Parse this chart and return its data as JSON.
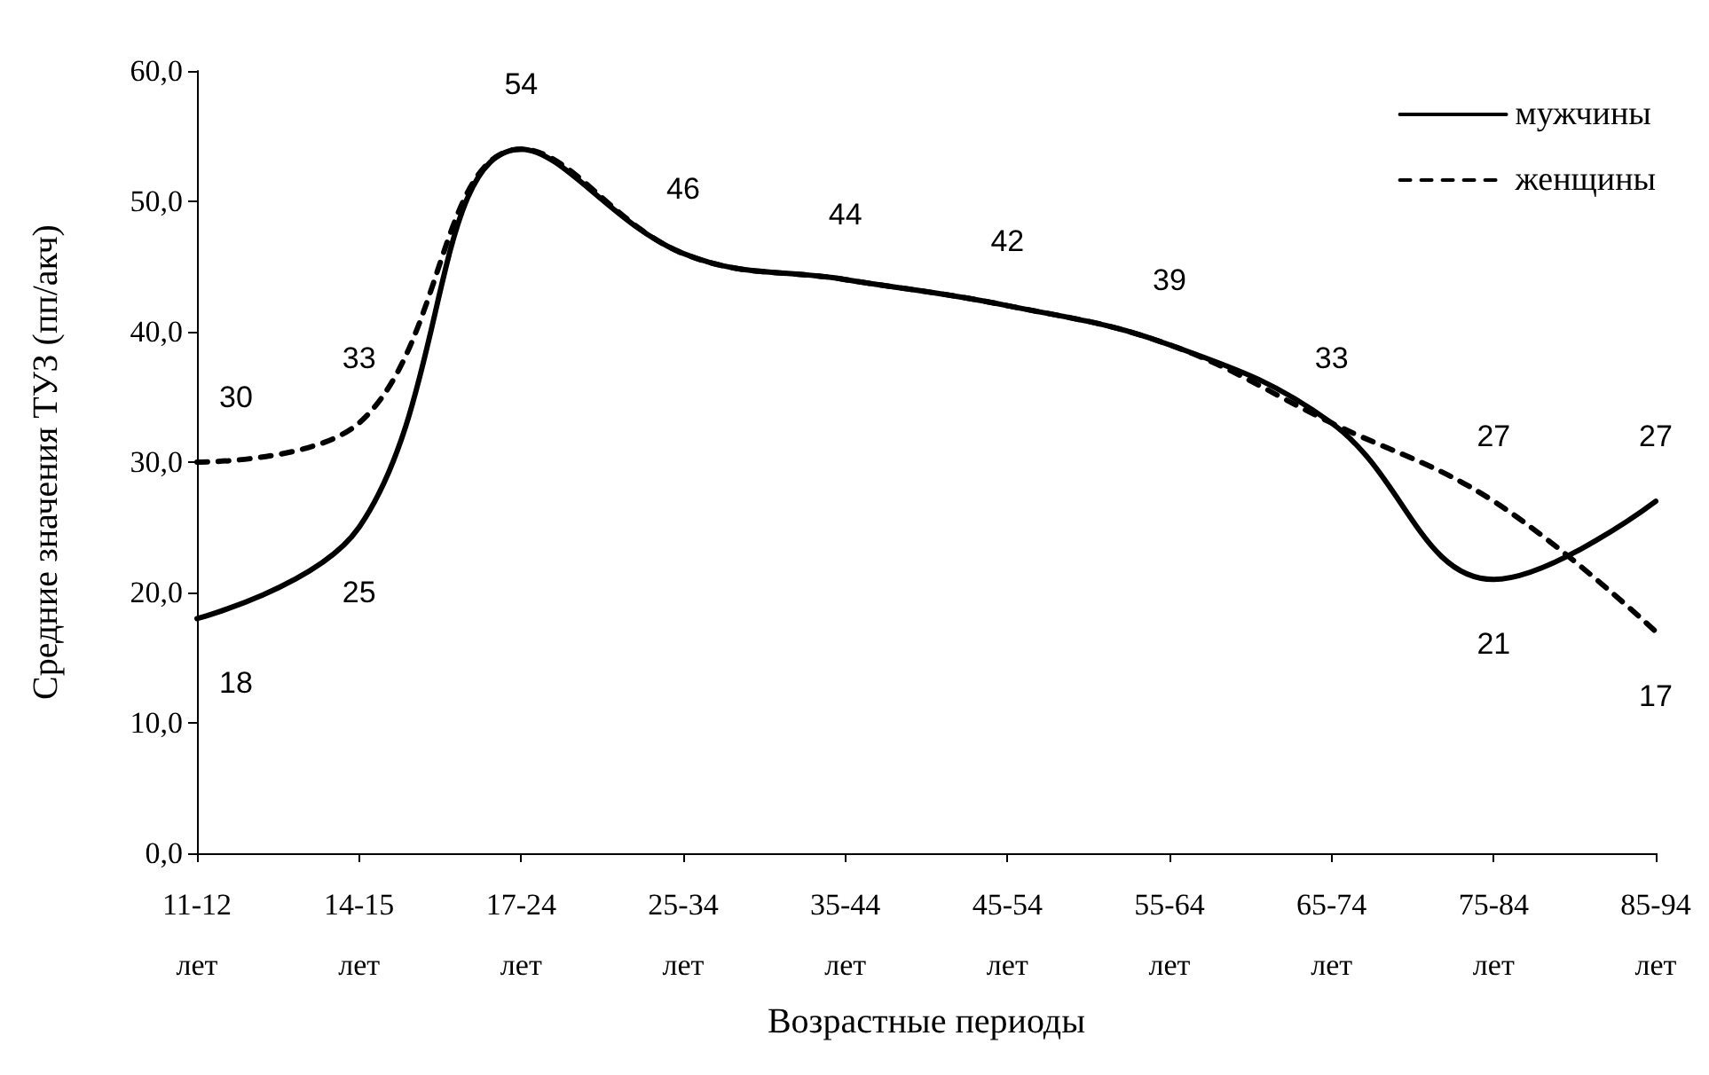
{
  "chart_data": {
    "type": "line",
    "xlabel": "Возрастные периоды",
    "ylabel": "Средние значения ТУЗ (пп/акч)",
    "categories": [
      "11-12 лет",
      "14-15 лет",
      "17-24 лет",
      "25-34 лет",
      "35-44 лет",
      "45-54 лет",
      "55-64 лет",
      "65-74 лет",
      "75-84 лет",
      "85-94 лет"
    ],
    "series": [
      {
        "name": "мужчины",
        "color": "#000000",
        "line_style": "solid",
        "values": [
          18,
          25,
          54,
          46,
          44,
          42,
          39,
          33,
          21,
          27
        ],
        "value_labels": [
          "18",
          "25",
          null,
          null,
          null,
          null,
          null,
          null,
          "21",
          "27"
        ]
      },
      {
        "name": "женщины",
        "color": "#000000",
        "line_style": "dashed",
        "values": [
          30,
          33,
          54,
          46,
          44,
          42,
          39,
          33,
          27,
          17
        ],
        "value_labels": [
          "30",
          "33",
          "54",
          "46",
          "44",
          "42",
          "39",
          "33",
          "27",
          "17"
        ]
      }
    ],
    "ylim": [
      0,
      60
    ],
    "yticks": [
      {
        "value": 0,
        "label": "0,0"
      },
      {
        "value": 10,
        "label": "10,0"
      },
      {
        "value": 20,
        "label": "20,0"
      },
      {
        "value": 30,
        "label": "30,0"
      },
      {
        "value": 40,
        "label": "40,0"
      },
      {
        "value": 50,
        "label": "50,0"
      },
      {
        "value": 60,
        "label": "60,0"
      }
    ],
    "grid": false,
    "legend": "top right",
    "marker": "none"
  }
}
